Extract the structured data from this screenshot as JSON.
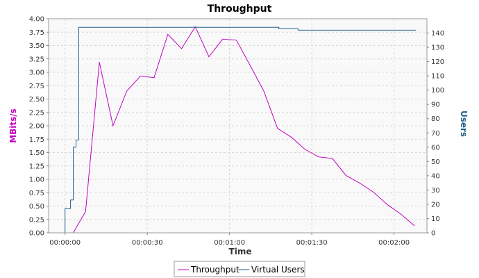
{
  "chart_data": {
    "type": "line",
    "title": "Throughput",
    "xlabel": "Time",
    "ylabel_left": "MBits/s",
    "ylabel_right": "Users",
    "x_unit": "seconds",
    "xlim": [
      -6,
      132
    ],
    "x_ticks": [
      {
        "value": 0,
        "label": "00:00:00"
      },
      {
        "value": 30,
        "label": "00:00:30"
      },
      {
        "value": 60,
        "label": "00:01:00"
      },
      {
        "value": 90,
        "label": "00:01:30"
      },
      {
        "value": 120,
        "label": "00:02:00"
      }
    ],
    "ylim_left": [
      0,
      4.0
    ],
    "y_ticks_left": [
      "0.00",
      "0.25",
      "0.50",
      "0.75",
      "1.00",
      "1.25",
      "1.50",
      "1.75",
      "2.00",
      "2.25",
      "2.50",
      "2.75",
      "3.00",
      "3.25",
      "3.50",
      "3.75",
      "4.00"
    ],
    "ylim_right": [
      0,
      150
    ],
    "y_ticks_right": [
      "0",
      "10",
      "20",
      "30",
      "40",
      "50",
      "60",
      "70",
      "80",
      "90",
      "100",
      "110",
      "120",
      "130",
      "140"
    ],
    "grid": true,
    "legend_position": "bottom",
    "series": [
      {
        "name": "Throughput",
        "axis": "left",
        "color": "#c000c0",
        "step": false,
        "points": [
          [
            3,
            0
          ],
          [
            7.5,
            0.4
          ],
          [
            12.5,
            3.19
          ],
          [
            17.5,
            2.0
          ],
          [
            22.5,
            2.65
          ],
          [
            27.5,
            2.93
          ],
          [
            32.5,
            2.9
          ],
          [
            37.5,
            3.71
          ],
          [
            42.5,
            3.44
          ],
          [
            47.5,
            3.85
          ],
          [
            52.5,
            3.29
          ],
          [
            57.5,
            3.62
          ],
          [
            62.5,
            3.6
          ],
          [
            67.5,
            3.13
          ],
          [
            72.5,
            2.65
          ],
          [
            77.5,
            1.95
          ],
          [
            82.5,
            1.79
          ],
          [
            87.5,
            1.56
          ],
          [
            92.5,
            1.42
          ],
          [
            97.5,
            1.39
          ],
          [
            102.5,
            1.07
          ],
          [
            107.5,
            0.93
          ],
          [
            112.5,
            0.76
          ],
          [
            117.5,
            0.53
          ],
          [
            122.5,
            0.35
          ],
          [
            127.5,
            0.13
          ]
        ]
      },
      {
        "name": "Virtual Users",
        "axis": "right",
        "color": "#1f5f8b",
        "step": true,
        "points": [
          [
            0,
            0
          ],
          [
            0,
            17
          ],
          [
            2,
            17
          ],
          [
            2,
            23
          ],
          [
            3,
            23
          ],
          [
            3,
            60
          ],
          [
            4,
            60
          ],
          [
            4,
            65
          ],
          [
            5,
            65
          ],
          [
            5,
            144
          ],
          [
            78,
            144
          ],
          [
            78,
            143
          ],
          [
            85,
            143
          ],
          [
            85,
            142
          ],
          [
            128,
            142
          ]
        ]
      }
    ]
  }
}
